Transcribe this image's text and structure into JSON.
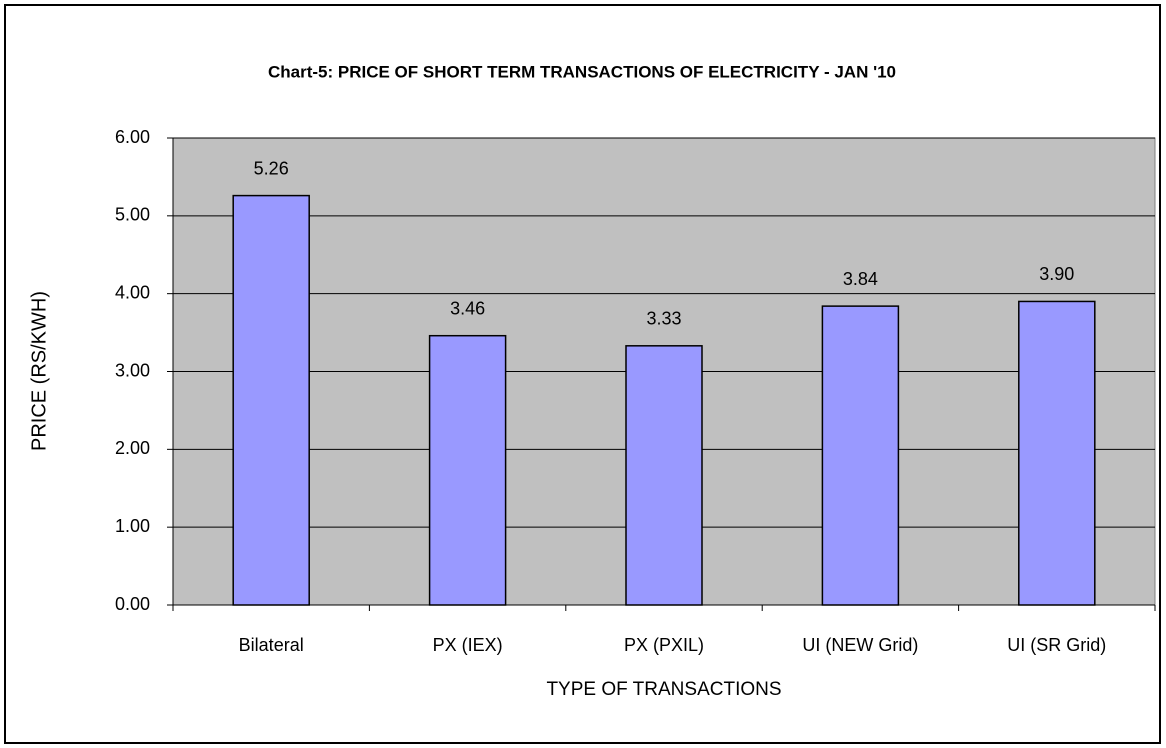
{
  "chart_data": {
    "type": "bar",
    "title": "Chart-5: PRICE OF SHORT TERM TRANSACTIONS OF ELECTRICITY - JAN '10",
    "x_label": "TYPE OF TRANSACTIONS",
    "y_label": "PRICE (RS/KWH)",
    "categories": [
      "Bilateral",
      "PX (IEX)",
      "PX (PXIL)",
      "UI (NEW Grid)",
      "UI (SR Grid)"
    ],
    "values": [
      5.26,
      3.46,
      3.33,
      3.84,
      3.9
    ],
    "value_labels": [
      "5.26",
      "3.46",
      "3.33",
      "3.84",
      "3.90"
    ],
    "color": "#9999ff",
    "ylim": [
      0,
      6
    ],
    "yticks": [
      {
        "value": 0,
        "label": "0.00"
      },
      {
        "value": 1,
        "label": "1.00"
      },
      {
        "value": 2,
        "label": "2.00"
      },
      {
        "value": 3,
        "label": "3.00"
      },
      {
        "value": 4,
        "label": "4.00"
      },
      {
        "value": 5,
        "label": "5.00"
      },
      {
        "value": 6,
        "label": "6.00"
      }
    ],
    "grid": true
  }
}
